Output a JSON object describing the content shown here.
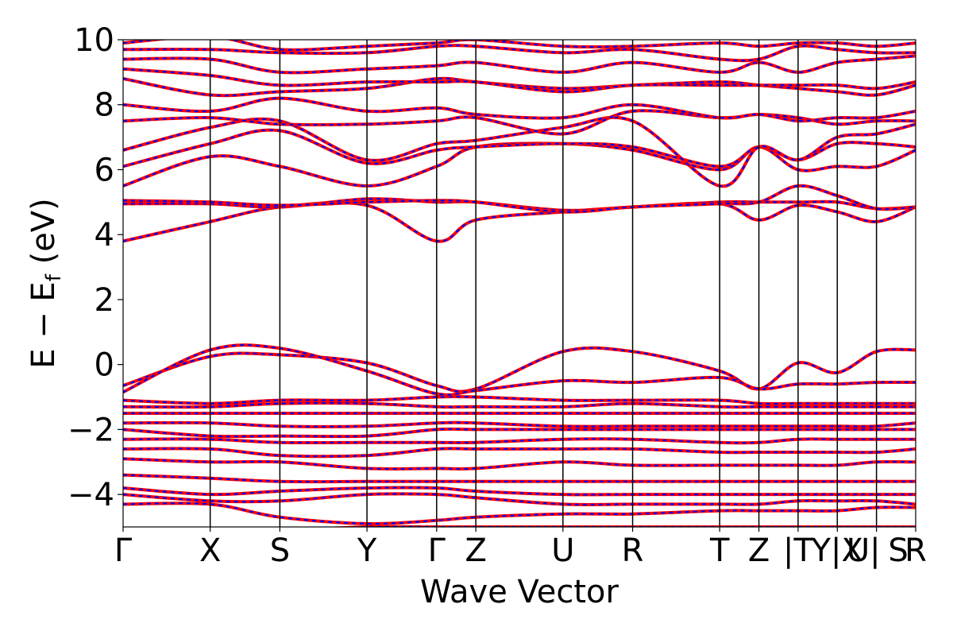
{
  "chart_data": {
    "type": "line",
    "title": "",
    "xlabel": "Wave Vector",
    "ylabel_parts": {
      "main": "E − E",
      "sub": "f",
      "unit": " (eV)"
    },
    "ylim": [
      -5,
      10
    ],
    "yticks": [
      -4,
      -2,
      0,
      2,
      4,
      6,
      8,
      10
    ],
    "yticklabels": [
      "−4",
      "−2",
      "0",
      "2",
      "4",
      "6",
      "8",
      "10"
    ],
    "kpath_positions": [
      0,
      1.0,
      1.8,
      2.8,
      3.6,
      4.05,
      5.05,
      5.85,
      6.85,
      7.3,
      7.75,
      8.2,
      8.65,
      9.1
    ],
    "kpath_labels": [
      "Γ",
      "X",
      "S",
      "Y",
      "Γ",
      "Z",
      "U",
      "R",
      "T",
      "Z",
      "|T",
      "Y|X",
      "U|",
      "S",
      "R"
    ],
    "kpath_label_positions": [
      0,
      1.0,
      1.8,
      2.8,
      3.6,
      4.05,
      5.05,
      5.85,
      6.85,
      7.3,
      7.75,
      8.2,
      8.5,
      8.9,
      9.1
    ],
    "series_colors": {
      "spin_up": "#0000ff",
      "spin_down": "#ff0000"
    },
    "bands": [
      [
        -5.2,
        -5.1,
        -5.1,
        -5.0,
        -5.0,
        -5.0,
        -5.0,
        -5.0,
        -5.0,
        -5.0,
        -5.0,
        -5.0,
        -5.0,
        -5.0
      ],
      [
        -4.3,
        -4.3,
        -4.7,
        -4.9,
        -4.8,
        -4.7,
        -4.6,
        -4.6,
        -4.5,
        -4.5,
        -4.5,
        -4.5,
        -4.4,
        -4.4
      ],
      [
        -4.0,
        -4.2,
        -4.2,
        -4.0,
        -4.0,
        -4.1,
        -4.3,
        -4.3,
        -4.3,
        -4.3,
        -4.2,
        -4.2,
        -4.2,
        -4.3
      ],
      [
        -3.8,
        -4.0,
        -3.9,
        -3.8,
        -3.8,
        -3.9,
        -4.0,
        -4.0,
        -4.0,
        -4.0,
        -4.0,
        -4.0,
        -4.0,
        -4.0
      ],
      [
        -3.4,
        -3.5,
        -3.6,
        -3.6,
        -3.6,
        -3.6,
        -3.6,
        -3.6,
        -3.6,
        -3.6,
        -3.6,
        -3.6,
        -3.6,
        -3.6
      ],
      [
        -2.9,
        -3.0,
        -3.0,
        -3.2,
        -3.2,
        -3.2,
        -3.0,
        -3.1,
        -3.1,
        -3.1,
        -3.1,
        -3.1,
        -3.0,
        -3.0
      ],
      [
        -2.6,
        -2.6,
        -2.8,
        -2.8,
        -2.6,
        -2.6,
        -2.6,
        -2.6,
        -2.7,
        -2.7,
        -2.7,
        -2.7,
        -2.7,
        -2.6
      ],
      [
        -2.3,
        -2.3,
        -2.4,
        -2.4,
        -2.4,
        -2.4,
        -2.3,
        -2.3,
        -2.4,
        -2.4,
        -2.3,
        -2.3,
        -2.3,
        -2.3
      ],
      [
        -2.0,
        -2.2,
        -2.2,
        -2.2,
        -2.0,
        -2.0,
        -2.0,
        -2.0,
        -2.0,
        -2.0,
        -2.0,
        -2.0,
        -2.0,
        -2.0
      ],
      [
        -1.8,
        -1.8,
        -1.9,
        -1.9,
        -1.8,
        -1.8,
        -1.9,
        -1.9,
        -1.9,
        -1.9,
        -1.9,
        -1.9,
        -1.9,
        -1.8
      ],
      [
        -1.5,
        -1.5,
        -1.5,
        -1.5,
        -1.5,
        -1.5,
        -1.5,
        -1.5,
        -1.5,
        -1.5,
        -1.5,
        -1.5,
        -1.5,
        -1.5
      ],
      [
        -1.3,
        -1.3,
        -1.2,
        -1.2,
        -1.3,
        -1.3,
        -1.3,
        -1.2,
        -1.3,
        -1.3,
        -1.3,
        -1.3,
        -1.3,
        -1.3
      ],
      [
        -1.1,
        -1.2,
        -1.1,
        -1.1,
        -1.0,
        -1.0,
        -1.1,
        -1.1,
        -1.1,
        -1.2,
        -1.2,
        -1.2,
        -1.2,
        -1.2
      ],
      [
        -0.65,
        0.25,
        0.3,
        0.05,
        -0.65,
        -0.75,
        0.4,
        0.4,
        -0.2,
        -0.75,
        0.05,
        -0.25,
        0.4,
        0.45
      ],
      [
        -0.85,
        0.45,
        0.5,
        -0.2,
        -0.9,
        -0.8,
        -0.5,
        -0.55,
        -0.4,
        -0.75,
        -0.6,
        -0.6,
        -0.55,
        -0.55
      ],
      [
        3.8,
        4.4,
        4.85,
        4.9,
        3.8,
        4.45,
        4.7,
        4.85,
        4.95,
        4.45,
        4.9,
        4.7,
        4.4,
        4.85
      ],
      [
        4.95,
        4.95,
        4.85,
        5.1,
        5.0,
        5.0,
        4.75,
        4.85,
        5.0,
        5.0,
        5.0,
        5.0,
        4.8,
        4.85
      ],
      [
        5.05,
        5.0,
        4.9,
        5.0,
        5.05,
        5.0,
        4.7,
        4.85,
        4.95,
        5.0,
        5.5,
        5.2,
        4.8,
        4.85
      ],
      [
        5.5,
        6.4,
        6.1,
        5.5,
        6.1,
        6.7,
        6.8,
        6.6,
        6.0,
        6.7,
        6.0,
        6.1,
        6.1,
        6.6
      ],
      [
        6.1,
        6.8,
        7.2,
        6.2,
        6.6,
        6.7,
        6.8,
        6.7,
        6.1,
        6.7,
        6.3,
        6.8,
        6.8,
        6.7
      ],
      [
        6.6,
        7.3,
        7.5,
        6.3,
        6.8,
        6.9,
        7.3,
        7.5,
        5.5,
        6.7,
        6.3,
        7.0,
        7.1,
        7.4
      ],
      [
        7.5,
        7.6,
        7.4,
        7.4,
        7.5,
        7.6,
        7.1,
        7.8,
        7.6,
        7.7,
        7.6,
        7.4,
        7.5,
        7.5
      ],
      [
        8.0,
        7.8,
        8.2,
        7.8,
        7.9,
        7.7,
        7.6,
        8.0,
        7.6,
        7.7,
        7.5,
        7.6,
        7.6,
        7.8
      ],
      [
        8.8,
        8.3,
        8.4,
        8.5,
        8.8,
        8.7,
        8.5,
        8.6,
        8.7,
        8.6,
        8.5,
        8.4,
        8.3,
        8.6
      ],
      [
        9.1,
        8.9,
        8.6,
        8.7,
        8.7,
        8.7,
        8.4,
        8.6,
        8.6,
        8.6,
        8.6,
        8.6,
        8.5,
        8.7
      ],
      [
        9.4,
        9.4,
        9.0,
        9.1,
        9.2,
        9.3,
        9.0,
        9.3,
        9.0,
        9.3,
        9.0,
        9.3,
        9.4,
        9.5
      ],
      [
        9.7,
        9.7,
        9.6,
        9.6,
        9.8,
        9.8,
        9.6,
        9.7,
        9.4,
        9.4,
        9.8,
        9.7,
        9.6,
        9.6
      ],
      [
        9.9,
        10.1,
        9.7,
        9.8,
        9.9,
        10.0,
        9.8,
        9.8,
        9.9,
        9.8,
        9.9,
        9.9,
        9.8,
        9.9
      ]
    ]
  }
}
